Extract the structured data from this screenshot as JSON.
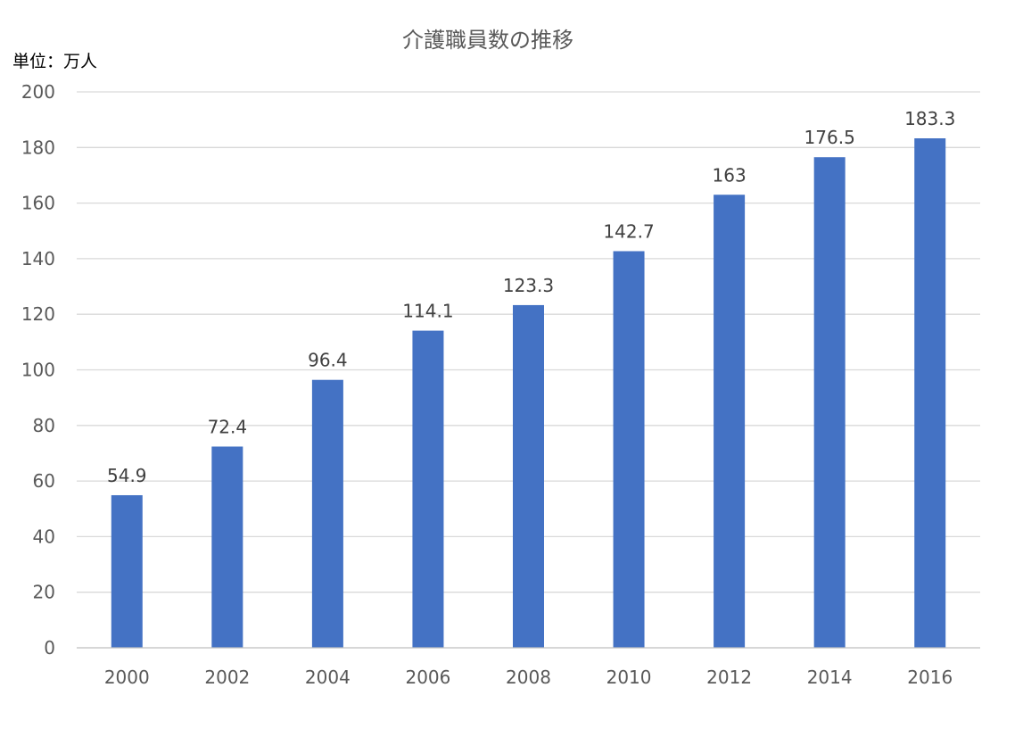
{
  "chart_data": {
    "type": "bar",
    "title": "介護職員数の推移",
    "unit_label": "単位：万人",
    "xlabel": "",
    "ylabel": "",
    "categories": [
      "2000",
      "2002",
      "2004",
      "2006",
      "2008",
      "2010",
      "2012",
      "2014",
      "2016"
    ],
    "values": [
      54.9,
      72.4,
      96.4,
      114.1,
      123.3,
      142.7,
      163,
      176.5,
      183.3
    ],
    "data_labels": [
      "54.9",
      "72.4",
      "96.4",
      "114.1",
      "123.3",
      "142.7",
      "163",
      "176.5",
      "183.3"
    ],
    "ylim": [
      0,
      200
    ],
    "yticks": [
      0,
      20,
      40,
      60,
      80,
      100,
      120,
      140,
      160,
      180,
      200
    ],
    "grid": true,
    "legend": "none",
    "colors": {
      "bar": "#4472c4",
      "grid": "#d9d9d9",
      "axis": "#bfbfbf",
      "title": "#595959",
      "tick_text": "#595959",
      "data_label_text": "#404040",
      "unit_text": "#000000"
    }
  }
}
